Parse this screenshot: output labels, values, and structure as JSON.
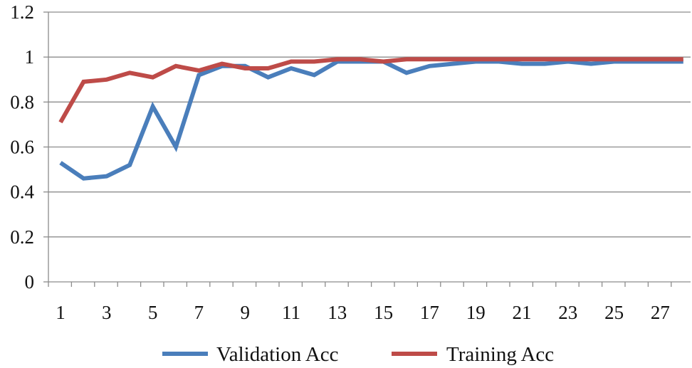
{
  "chart_data": {
    "type": "line",
    "title": "",
    "xlabel": "",
    "ylabel": "",
    "x": [
      1,
      2,
      3,
      4,
      5,
      6,
      7,
      8,
      9,
      10,
      11,
      12,
      13,
      14,
      15,
      16,
      17,
      18,
      19,
      20,
      21,
      22,
      23,
      24,
      25,
      26,
      27,
      28
    ],
    "xtick_labels": [
      "1",
      "3",
      "5",
      "7",
      "9",
      "11",
      "13",
      "15",
      "17",
      "19",
      "21",
      "23",
      "25",
      "27"
    ],
    "ytick_labels": [
      "0",
      "0.2",
      "0.4",
      "0.6",
      "0.8",
      "1",
      "1.2"
    ],
    "ylim": [
      0,
      1.2
    ],
    "y_ticks": [
      0,
      0.2,
      0.4,
      0.6,
      0.8,
      1.0,
      1.2
    ],
    "grid": true,
    "legend_position": "bottom",
    "series": [
      {
        "name": "Validation Acc",
        "color": "#4a7ebb",
        "values": [
          0.53,
          0.46,
          0.47,
          0.52,
          0.78,
          0.6,
          0.92,
          0.96,
          0.96,
          0.91,
          0.95,
          0.92,
          0.98,
          0.98,
          0.98,
          0.93,
          0.96,
          0.97,
          0.98,
          0.98,
          0.97,
          0.97,
          0.98,
          0.97,
          0.98,
          0.98,
          0.98,
          0.98
        ]
      },
      {
        "name": "Training Acc",
        "color": "#be4b48",
        "values": [
          0.71,
          0.89,
          0.9,
          0.93,
          0.91,
          0.96,
          0.94,
          0.97,
          0.95,
          0.95,
          0.98,
          0.98,
          0.99,
          0.99,
          0.98,
          0.99,
          0.99,
          0.99,
          0.99,
          0.99,
          0.99,
          0.99,
          0.99,
          0.99,
          0.99,
          0.99,
          0.99,
          0.99
        ]
      }
    ]
  }
}
